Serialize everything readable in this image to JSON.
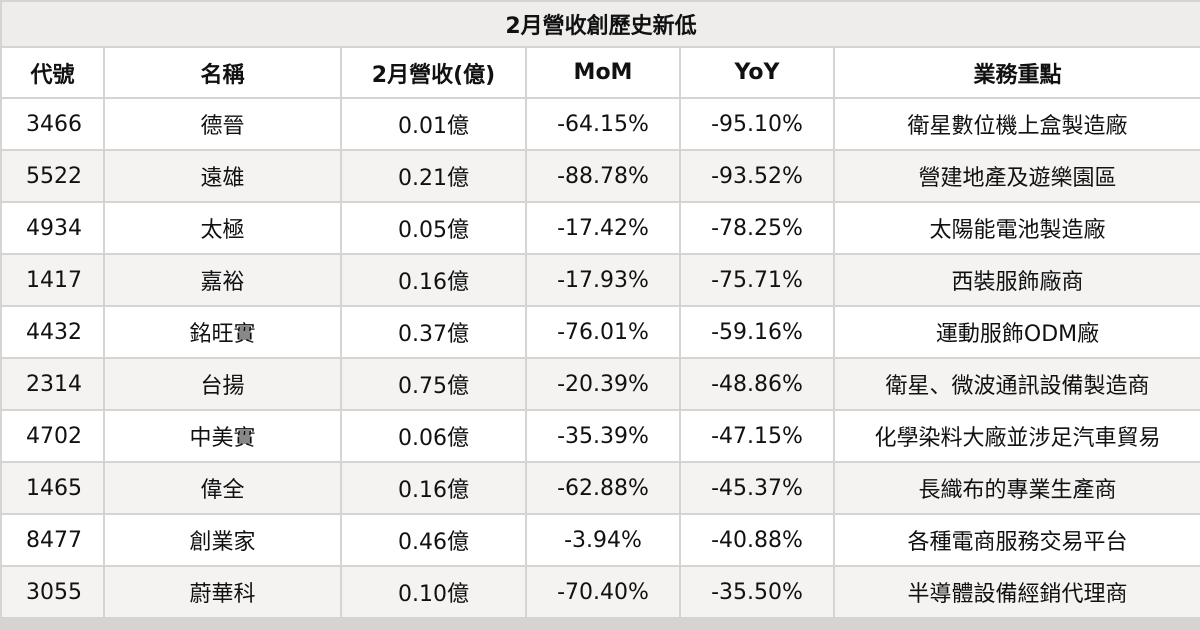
{
  "title": "2月營收創歷史新低",
  "headers": [
    "代號",
    "名稱",
    "2月營收(億)",
    "MoM",
    "YoY",
    "業務重點"
  ],
  "rows": [
    {
      "code": "3466",
      "name": "德晉",
      "revenue": "0.01億",
      "mom": "-64.15%",
      "yoy": "-95.10%",
      "business": "衛星數位機上盒製造廠"
    },
    {
      "code": "5522",
      "name": "遠雄",
      "revenue": "0.21億",
      "mom": "-88.78%",
      "yoy": "-93.52%",
      "business": "營建地產及遊樂園區"
    },
    {
      "code": "4934",
      "name": "太極",
      "revenue": "0.05億",
      "mom": "-17.42%",
      "yoy": "-78.25%",
      "business": "太陽能電池製造廠"
    },
    {
      "code": "1417",
      "name": "嘉裕",
      "revenue": "0.16億",
      "mom": "-17.93%",
      "yoy": "-75.71%",
      "business": "西裝服飾廠商"
    },
    {
      "code": "4432",
      "name": "銘旺實",
      "revenue": "0.37億",
      "mom": "-76.01%",
      "yoy": "-59.16%",
      "business": "運動服飾ODM廠"
    },
    {
      "code": "2314",
      "name": "台揚",
      "revenue": "0.75億",
      "mom": "-20.39%",
      "yoy": "-48.86%",
      "business": "衛星、微波通訊設備製造商"
    },
    {
      "code": "4702",
      "name": "中美實",
      "revenue": "0.06億",
      "mom": "-35.39%",
      "yoy": "-47.15%",
      "business": "化學染料大廠並涉足汽車貿易"
    },
    {
      "code": "1465",
      "name": "偉全",
      "revenue": "0.16億",
      "mom": "-62.88%",
      "yoy": "-45.37%",
      "business": "長織布的專業生產商"
    },
    {
      "code": "8477",
      "name": "創業家",
      "revenue": "0.46億",
      "mom": "-3.94%",
      "yoy": "-40.88%",
      "business": "各種電商服務交易平台"
    },
    {
      "code": "3055",
      "name": "蔚華科",
      "revenue": "0.10億",
      "mom": "-70.40%",
      "yoy": "-35.50%",
      "business": "半導體設備經銷代理商"
    }
  ]
}
